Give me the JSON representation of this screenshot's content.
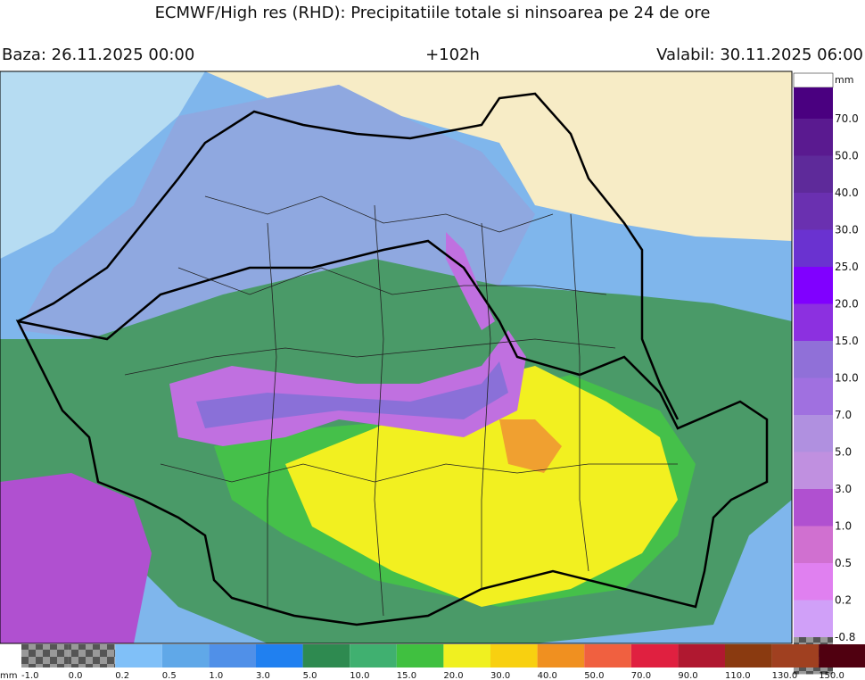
{
  "header": {
    "title": "ECMWF/High res (RHD): Precipitatiile totale si ninsoarea pe 24 de ore",
    "base": "Baza: 26.11.2025 00:00",
    "step": "+102h",
    "valid": "Valabil: 30.11.2025 06:00"
  },
  "legend_right": {
    "unit": "mm",
    "labels": [
      "70.0",
      "50.0",
      "40.0",
      "30.0",
      "25.0",
      "20.0",
      "15.0",
      "10.0",
      "7.0",
      "5.0",
      "3.0",
      "1.0",
      "0.5",
      "0.2",
      "-0.8"
    ]
  },
  "legend_bottom": {
    "unit": "mm",
    "labels": [
      "-1.0",
      "0.0",
      "0.2",
      "0.5",
      "1.0",
      "3.0",
      "5.0",
      "10.0",
      "15.0",
      "20.0",
      "30.0",
      "40.0",
      "50.0",
      "70.0",
      "90.0",
      "110.0",
      "130.0",
      "150.0"
    ]
  }
}
